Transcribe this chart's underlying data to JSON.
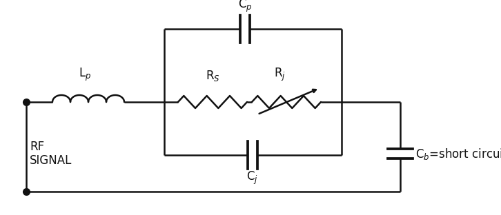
{
  "background_color": "#ffffff",
  "line_color": "#111111",
  "line_width": 1.8,
  "text_color": "#111111",
  "label_Lp": "L$_p$",
  "label_Rs": "R$_S$",
  "label_Rj": "R$_j$",
  "label_Cp": "C$_p$",
  "label_Cj": "C$_j$",
  "label_Cb": "C$_b$=short circuit",
  "label_signal": "RF\nSIGNAL",
  "figsize": [
    7.26,
    3.12
  ],
  "dpi": 100
}
